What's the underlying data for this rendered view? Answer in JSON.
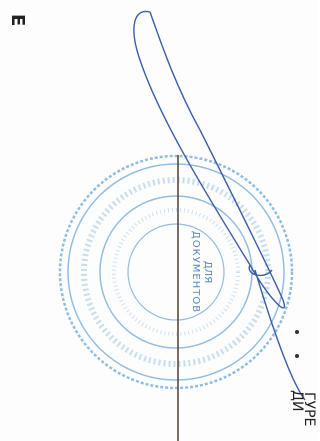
{
  "header_letter": "Е",
  "signature_caption": "ДИ",
  "name_fragment": "ГУРЕ",
  "stamp": {
    "inner_lines": [
      "ДЛЯ",
      "ДОКУМЕНТОВ"
    ]
  }
}
